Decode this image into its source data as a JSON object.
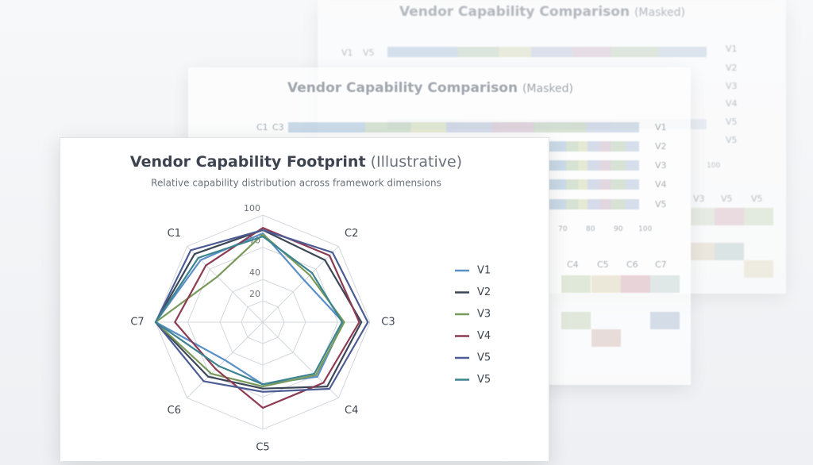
{
  "chart_data": {
    "type": "radar",
    "title": "Vendor Capability Footprint",
    "title_note": "(Illustrative)",
    "subtitle": "Relative capability distribution across framework dimensions",
    "categories": [
      null,
      "C2",
      "C3",
      "C4",
      "C5",
      "C6",
      "C7",
      "C1"
    ],
    "rlim": [
      0,
      100
    ],
    "rticks": [
      20,
      40,
      70,
      100
    ],
    "grid": true,
    "legend": "right",
    "series": [
      {
        "name": "V1",
        "color": "#5b8fc7",
        "values": [
          83,
          55,
          75,
          72,
          58,
          50,
          100,
          82
        ]
      },
      {
        "name": "V2",
        "color": "#3b4656",
        "values": [
          86,
          82,
          92,
          85,
          62,
          72,
          100,
          90
        ]
      },
      {
        "name": "V3",
        "color": "#7a9a5c",
        "values": [
          82,
          62,
          76,
          70,
          60,
          68,
          100,
          60
        ]
      },
      {
        "name": "V4",
        "color": "#8c3b52",
        "values": [
          88,
          88,
          90,
          80,
          80,
          62,
          82,
          75
        ]
      },
      {
        "name": "V5",
        "color": "#4c5c94",
        "values": [
          86,
          92,
          98,
          88,
          65,
          78,
          100,
          95
        ]
      },
      {
        "name": "V5",
        "color": "#3d8491",
        "values": [
          80,
          65,
          74,
          68,
          58,
          58,
          100,
          85
        ]
      }
    ]
  },
  "background_cards": [
    {
      "title": "Vendor Capability Comparison",
      "title_note": "(Masked)",
      "left_labels": [
        "V1",
        "V5"
      ],
      "right_labels": [
        "V1",
        "V2",
        "V3",
        "V4",
        "V5",
        "V5"
      ],
      "axis_labels": [
        "100"
      ],
      "table_header": [
        "V3",
        "V5",
        "V5"
      ]
    },
    {
      "title": "Vendor Capability Comparison",
      "title_note": "(Masked)",
      "left_labels": [
        "C1",
        "C3"
      ],
      "right_labels": [
        "V1",
        "V2",
        "V3",
        "V4",
        "V5"
      ],
      "axis_labels": [
        "70",
        "80",
        "90",
        "100"
      ],
      "table_header": [
        "C4",
        "C5",
        "C6",
        "C7"
      ]
    }
  ]
}
